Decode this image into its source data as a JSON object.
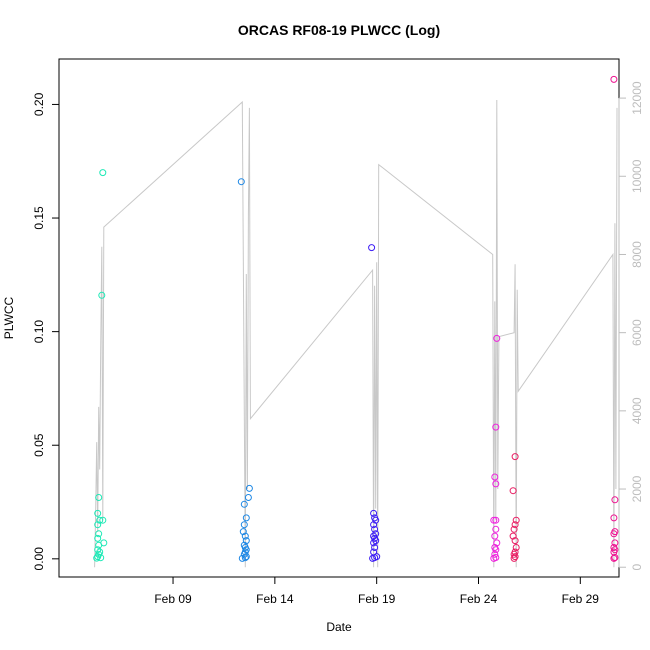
{
  "chart_data": {
    "type": "scatter",
    "title": "ORCAS RF08-19 PLWCC (Log)",
    "xlabel": "Date",
    "ylabel": "PLWCC",
    "x_ticks": [
      "Feb 09",
      "Feb 14",
      "Feb 19",
      "Feb 24",
      "Feb 29"
    ],
    "x_tick_days": [
      9,
      14,
      19,
      24,
      29
    ],
    "xlim": [
      3.4,
      30.9
    ],
    "ylim": [
      -0.008,
      0.22
    ],
    "y_ticks": [
      0.0,
      0.05,
      0.1,
      0.15,
      0.2
    ],
    "y_tick_labels": [
      "0.00",
      "0.05",
      "0.10",
      "0.15",
      "0.20"
    ],
    "y2lim": [
      -250,
      13000
    ],
    "y2_ticks": [
      0,
      2000,
      4000,
      6000,
      8000,
      10000,
      12000
    ],
    "y2_tick_labels": [
      "0",
      "2000",
      "4000",
      "6000",
      "8000",
      "10000",
      "12000"
    ],
    "grid": false,
    "legend": "none",
    "colors": {
      "flight1": "#1de9b6",
      "flight2": "#1e88e5",
      "flight3": "#3d1df5",
      "flight4": "#ee22dd",
      "flight5": "#e91e63",
      "flight6": "#ee1190",
      "secondary_line": "#c8c8c8",
      "axis": "#000000",
      "secondary_axis": "#bdbdbd"
    },
    "series": [
      {
        "color_key": "flight1",
        "points": [
          [
            5.25,
            0.0003
          ],
          [
            5.3,
            0.001
          ],
          [
            5.35,
            0.002
          ],
          [
            5.4,
            0.003
          ],
          [
            5.3,
            0.004
          ],
          [
            5.35,
            0.006
          ],
          [
            5.3,
            0.009
          ],
          [
            5.35,
            0.011
          ],
          [
            5.3,
            0.015
          ],
          [
            5.4,
            0.017
          ],
          [
            5.3,
            0.02
          ],
          [
            5.35,
            0.027
          ],
          [
            5.55,
            0.017
          ],
          [
            5.6,
            0.007
          ],
          [
            5.45,
            0.0005
          ],
          [
            5.5,
            0.116
          ],
          [
            5.55,
            0.17
          ]
        ]
      },
      {
        "color_key": "flight2",
        "points": [
          [
            12.4,
            0.0002
          ],
          [
            12.55,
            0.0005
          ],
          [
            12.6,
            0.001
          ],
          [
            12.5,
            0.002
          ],
          [
            12.55,
            0.003
          ],
          [
            12.6,
            0.004
          ],
          [
            12.55,
            0.005
          ],
          [
            12.5,
            0.006
          ],
          [
            12.6,
            0.008
          ],
          [
            12.55,
            0.01
          ],
          [
            12.45,
            0.012
          ],
          [
            12.5,
            0.015
          ],
          [
            12.6,
            0.018
          ],
          [
            12.5,
            0.024
          ],
          [
            12.7,
            0.027
          ],
          [
            12.75,
            0.031
          ],
          [
            12.35,
            0.166
          ]
        ]
      },
      {
        "color_key": "flight3",
        "points": [
          [
            18.8,
            0.0002
          ],
          [
            18.9,
            0.0005
          ],
          [
            19.0,
            0.001
          ],
          [
            18.85,
            0.003
          ],
          [
            18.9,
            0.005
          ],
          [
            18.85,
            0.007
          ],
          [
            18.95,
            0.008
          ],
          [
            18.9,
            0.009
          ],
          [
            18.85,
            0.01
          ],
          [
            18.95,
            0.011
          ],
          [
            18.9,
            0.013
          ],
          [
            18.85,
            0.015
          ],
          [
            18.95,
            0.017
          ],
          [
            18.9,
            0.018
          ],
          [
            18.85,
            0.02
          ],
          [
            18.75,
            0.137
          ]
        ]
      },
      {
        "color_key": "flight4",
        "points": [
          [
            24.75,
            0.0002
          ],
          [
            24.85,
            0.0006
          ],
          [
            24.8,
            0.002
          ],
          [
            24.85,
            0.004
          ],
          [
            24.8,
            0.005
          ],
          [
            24.9,
            0.007
          ],
          [
            24.8,
            0.01
          ],
          [
            24.85,
            0.013
          ],
          [
            24.75,
            0.017
          ],
          [
            24.85,
            0.017
          ],
          [
            24.85,
            0.033
          ],
          [
            24.8,
            0.036
          ],
          [
            24.85,
            0.058
          ],
          [
            24.9,
            0.097
          ]
        ]
      },
      {
        "color_key": "flight5",
        "points": [
          [
            25.75,
            0.0002
          ],
          [
            25.8,
            0.001
          ],
          [
            25.75,
            0.002
          ],
          [
            25.8,
            0.003
          ],
          [
            25.85,
            0.005
          ],
          [
            25.8,
            0.008
          ],
          [
            25.7,
            0.01
          ],
          [
            25.75,
            0.013
          ],
          [
            25.8,
            0.015
          ],
          [
            25.85,
            0.017
          ],
          [
            25.7,
            0.03
          ],
          [
            25.8,
            0.045
          ]
        ]
      },
      {
        "color_key": "flight6",
        "points": [
          [
            30.65,
            0.0002
          ],
          [
            30.7,
            0.0006
          ],
          [
            30.65,
            0.003
          ],
          [
            30.7,
            0.004
          ],
          [
            30.65,
            0.005
          ],
          [
            30.7,
            0.007
          ],
          [
            30.65,
            0.011
          ],
          [
            30.7,
            0.012
          ],
          [
            30.65,
            0.018
          ],
          [
            30.7,
            0.026
          ],
          [
            30.65,
            0.211
          ]
        ]
      }
    ],
    "secondary_line": [
      [
        5.15,
        0
      ],
      [
        5.2,
        1500
      ],
      [
        5.25,
        3200
      ],
      [
        5.3,
        900
      ],
      [
        5.35,
        4100
      ],
      [
        5.4,
        2500
      ],
      [
        5.45,
        5600
      ],
      [
        5.5,
        8200
      ],
      [
        5.55,
        1200
      ],
      [
        5.6,
        8700
      ],
      [
        12.4,
        11900
      ],
      [
        12.55,
        0
      ],
      [
        12.6,
        7500
      ],
      [
        12.65,
        2000
      ],
      [
        12.7,
        9000
      ],
      [
        12.75,
        11750
      ],
      [
        12.8,
        3800
      ],
      [
        18.8,
        7600
      ],
      [
        18.85,
        0
      ],
      [
        18.9,
        7200
      ],
      [
        18.95,
        1500
      ],
      [
        19.0,
        7800
      ],
      [
        19.05,
        0
      ],
      [
        19.1,
        10300
      ],
      [
        24.7,
        8000
      ],
      [
        24.75,
        0
      ],
      [
        24.8,
        6800
      ],
      [
        24.85,
        1200
      ],
      [
        24.9,
        11950
      ],
      [
        24.95,
        2000
      ],
      [
        25.0,
        5900
      ],
      [
        25.75,
        6000
      ],
      [
        25.8,
        7750
      ],
      [
        25.85,
        0
      ],
      [
        25.9,
        7100
      ],
      [
        25.95,
        4500
      ],
      [
        30.6,
        8000
      ],
      [
        30.65,
        0
      ],
      [
        30.7,
        8800
      ],
      [
        30.75,
        2000
      ],
      [
        30.8,
        11750
      ]
    ]
  }
}
